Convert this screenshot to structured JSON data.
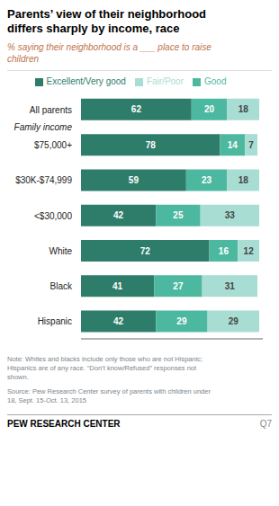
{
  "chart_data": {
    "type": "bar",
    "orientation": "horizontal",
    "stacked": true,
    "title": "Parents’ view of their neighborhood\ndiffers sharply by income, race",
    "subtitle": "% saying their neighborhood is a ___ place to raise\nchildren",
    "categories": [
      "All parents",
      "$75,000+",
      "$30K-$74,999",
      "<$30,000",
      "White",
      "Black",
      "Hispanic"
    ],
    "series": [
      {
        "name": "Excellent/Very good",
        "color": "#2e7d6a",
        "values": [
          62,
          78,
          59,
          42,
          72,
          41,
          42
        ]
      },
      {
        "name": "Good",
        "color": "#4db8a0",
        "values": [
          20,
          14,
          23,
          25,
          16,
          27,
          29
        ]
      },
      {
        "name": "Fair/Poor",
        "color": "#a8ddd4",
        "values": [
          18,
          7,
          18,
          33,
          12,
          31,
          29
        ]
      }
    ],
    "xlim": [
      0,
      102
    ],
    "grid": false,
    "legend": "top",
    "data_labels": true,
    "tick_labels": "y",
    "annotations": [
      {
        "text": "Family income",
        "category": "$75,000+"
      }
    ],
    "note": "Note: Whites and blacks include only those who are not Hispanic;\nHispanics are of any race. “Don’t know/Refused” responses not\nshown.",
    "source": "Source: Pew Research Center survey of parents with children under\n18, Sept. 15-Oct. 13, 2015",
    "branding": "PEW RESEARCH CENTER",
    "question": "Q7"
  }
}
